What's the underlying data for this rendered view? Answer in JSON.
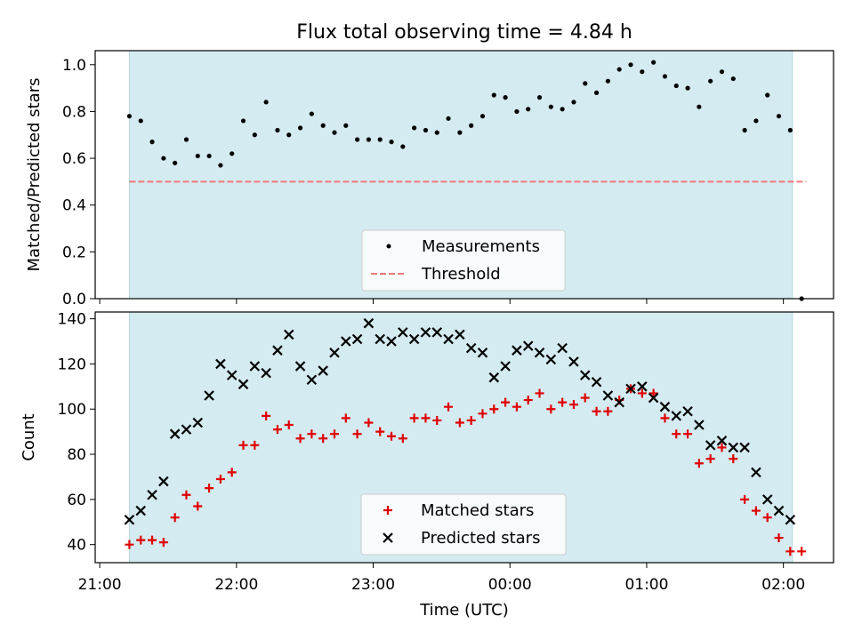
{
  "title": "Flux total observing time = 4.84 h",
  "colors": {
    "shade": "#d4ebf1",
    "threshold": "#f07878",
    "measurement": "#000000",
    "matched": "#e00000",
    "predicted": "#000000"
  },
  "chart_data": [
    {
      "type": "scatter",
      "ylabel": "Matched/Predicted stars",
      "xlim": [
        "20:58",
        "02:22"
      ],
      "ylim": [
        0,
        1.06
      ],
      "yticks": [
        "0.0",
        "0.2",
        "0.4",
        "0.6",
        "0.8",
        "1.0"
      ],
      "observing_window": [
        "21:13",
        "02:04"
      ],
      "legend_position": "lower-center",
      "series": [
        {
          "name": "Measurements",
          "marker": "dot",
          "points": [
            [
              "21:13",
              0.78
            ],
            [
              "21:18",
              0.76
            ],
            [
              "21:23",
              0.67
            ],
            [
              "21:28",
              0.6
            ],
            [
              "21:33",
              0.58
            ],
            [
              "21:38",
              0.68
            ],
            [
              "21:43",
              0.61
            ],
            [
              "21:48",
              0.61
            ],
            [
              "21:53",
              0.57
            ],
            [
              "21:58",
              0.62
            ],
            [
              "22:03",
              0.76
            ],
            [
              "22:08",
              0.7
            ],
            [
              "22:13",
              0.84
            ],
            [
              "22:18",
              0.72
            ],
            [
              "22:23",
              0.7
            ],
            [
              "22:28",
              0.73
            ],
            [
              "22:33",
              0.79
            ],
            [
              "22:38",
              0.74
            ],
            [
              "22:43",
              0.71
            ],
            [
              "22:48",
              0.74
            ],
            [
              "22:53",
              0.68
            ],
            [
              "22:58",
              0.68
            ],
            [
              "23:03",
              0.68
            ],
            [
              "23:08",
              0.67
            ],
            [
              "23:13",
              0.65
            ],
            [
              "23:18",
              0.73
            ],
            [
              "23:23",
              0.72
            ],
            [
              "23:28",
              0.71
            ],
            [
              "23:33",
              0.77
            ],
            [
              "23:38",
              0.71
            ],
            [
              "23:43",
              0.74
            ],
            [
              "23:48",
              0.78
            ],
            [
              "23:53",
              0.87
            ],
            [
              "23:58",
              0.86
            ],
            [
              "00:03",
              0.8
            ],
            [
              "00:08",
              0.81
            ],
            [
              "00:13",
              0.86
            ],
            [
              "00:18",
              0.82
            ],
            [
              "00:23",
              0.81
            ],
            [
              "00:28",
              0.84
            ],
            [
              "00:33",
              0.92
            ],
            [
              "00:38",
              0.88
            ],
            [
              "00:43",
              0.93
            ],
            [
              "00:48",
              0.98
            ],
            [
              "00:53",
              1.0
            ],
            [
              "00:58",
              0.97
            ],
            [
              "01:03",
              1.01
            ],
            [
              "01:08",
              0.95
            ],
            [
              "01:13",
              0.91
            ],
            [
              "01:18",
              0.9
            ],
            [
              "01:23",
              0.82
            ],
            [
              "01:28",
              0.93
            ],
            [
              "01:33",
              0.97
            ],
            [
              "01:38",
              0.94
            ],
            [
              "01:43",
              0.72
            ],
            [
              "01:48",
              0.76
            ],
            [
              "01:53",
              0.87
            ],
            [
              "01:58",
              0.78
            ],
            [
              "02:03",
              0.72
            ],
            [
              "02:08",
              0.0
            ]
          ]
        },
        {
          "name": "Threshold",
          "style": "dashed",
          "points": [
            [
              "21:13",
              0.5
            ],
            [
              "02:10",
              0.5
            ]
          ]
        }
      ]
    },
    {
      "type": "scatter",
      "xlabel": "Time (UTC)",
      "ylabel": "Count",
      "xlim": [
        "20:58",
        "02:22"
      ],
      "ylim": [
        32,
        143
      ],
      "xticks": [
        "21:00",
        "22:00",
        "23:00",
        "00:00",
        "01:00",
        "02:00"
      ],
      "yticks": [
        "40",
        "60",
        "80",
        "100",
        "120",
        "140"
      ],
      "observing_window": [
        "21:13",
        "02:04"
      ],
      "legend_position": "lower-center",
      "series": [
        {
          "name": "Matched stars",
          "marker": "plus",
          "points": [
            [
              "21:13",
              40
            ],
            [
              "21:18",
              42
            ],
            [
              "21:23",
              42
            ],
            [
              "21:28",
              41
            ],
            [
              "21:33",
              52
            ],
            [
              "21:38",
              62
            ],
            [
              "21:43",
              57
            ],
            [
              "21:48",
              65
            ],
            [
              "21:53",
              69
            ],
            [
              "21:58",
              72
            ],
            [
              "22:03",
              84
            ],
            [
              "22:08",
              84
            ],
            [
              "22:13",
              97
            ],
            [
              "22:18",
              91
            ],
            [
              "22:23",
              93
            ],
            [
              "22:28",
              87
            ],
            [
              "22:33",
              89
            ],
            [
              "22:38",
              87
            ],
            [
              "22:43",
              89
            ],
            [
              "22:48",
              96
            ],
            [
              "22:53",
              89
            ],
            [
              "22:58",
              94
            ],
            [
              "23:03",
              90
            ],
            [
              "23:08",
              88
            ],
            [
              "23:13",
              87
            ],
            [
              "23:18",
              96
            ],
            [
              "23:23",
              96
            ],
            [
              "23:28",
              95
            ],
            [
              "23:33",
              101
            ],
            [
              "23:38",
              94
            ],
            [
              "23:43",
              95
            ],
            [
              "23:48",
              98
            ],
            [
              "23:53",
              100
            ],
            [
              "23:58",
              103
            ],
            [
              "00:03",
              101
            ],
            [
              "00:08",
              104
            ],
            [
              "00:13",
              107
            ],
            [
              "00:18",
              100
            ],
            [
              "00:23",
              103
            ],
            [
              "00:28",
              102
            ],
            [
              "00:33",
              105
            ],
            [
              "00:38",
              99
            ],
            [
              "00:43",
              99
            ],
            [
              "00:48",
              104
            ],
            [
              "00:53",
              109
            ],
            [
              "00:58",
              107
            ],
            [
              "01:03",
              107
            ],
            [
              "01:08",
              96
            ],
            [
              "01:13",
              89
            ],
            [
              "01:18",
              89
            ],
            [
              "01:23",
              76
            ],
            [
              "01:28",
              78
            ],
            [
              "01:33",
              83
            ],
            [
              "01:38",
              78
            ],
            [
              "01:43",
              60
            ],
            [
              "01:48",
              55
            ],
            [
              "01:53",
              52
            ],
            [
              "01:58",
              43
            ],
            [
              "02:03",
              37
            ],
            [
              "02:08",
              37
            ]
          ]
        },
        {
          "name": "Predicted stars",
          "marker": "x",
          "points": [
            [
              "21:13",
              51
            ],
            [
              "21:18",
              55
            ],
            [
              "21:23",
              62
            ],
            [
              "21:28",
              68
            ],
            [
              "21:33",
              89
            ],
            [
              "21:38",
              91
            ],
            [
              "21:43",
              94
            ],
            [
              "21:48",
              106
            ],
            [
              "21:53",
              120
            ],
            [
              "21:58",
              115
            ],
            [
              "22:03",
              111
            ],
            [
              "22:08",
              119
            ],
            [
              "22:13",
              116
            ],
            [
              "22:18",
              126
            ],
            [
              "22:23",
              133
            ],
            [
              "22:28",
              119
            ],
            [
              "22:33",
              113
            ],
            [
              "22:38",
              117
            ],
            [
              "22:43",
              125
            ],
            [
              "22:48",
              130
            ],
            [
              "22:53",
              131
            ],
            [
              "22:58",
              138
            ],
            [
              "23:03",
              131
            ],
            [
              "23:08",
              130
            ],
            [
              "23:13",
              134
            ],
            [
              "23:18",
              131
            ],
            [
              "23:23",
              134
            ],
            [
              "23:28",
              134
            ],
            [
              "23:33",
              131
            ],
            [
              "23:38",
              133
            ],
            [
              "23:43",
              127
            ],
            [
              "23:48",
              125
            ],
            [
              "23:53",
              114
            ],
            [
              "23:58",
              119
            ],
            [
              "00:03",
              126
            ],
            [
              "00:08",
              128
            ],
            [
              "00:13",
              125
            ],
            [
              "00:18",
              122
            ],
            [
              "00:23",
              127
            ],
            [
              "00:28",
              121
            ],
            [
              "00:33",
              115
            ],
            [
              "00:38",
              112
            ],
            [
              "00:43",
              106
            ],
            [
              "00:48",
              103
            ],
            [
              "00:53",
              109
            ],
            [
              "00:58",
              110
            ],
            [
              "01:03",
              105
            ],
            [
              "01:08",
              101
            ],
            [
              "01:13",
              97
            ],
            [
              "01:18",
              99
            ],
            [
              "01:23",
              93
            ],
            [
              "01:28",
              84
            ],
            [
              "01:33",
              86
            ],
            [
              "01:38",
              83
            ],
            [
              "01:43",
              83
            ],
            [
              "01:48",
              72
            ],
            [
              "01:53",
              60
            ],
            [
              "01:58",
              55
            ],
            [
              "02:03",
              51
            ]
          ]
        }
      ]
    }
  ]
}
